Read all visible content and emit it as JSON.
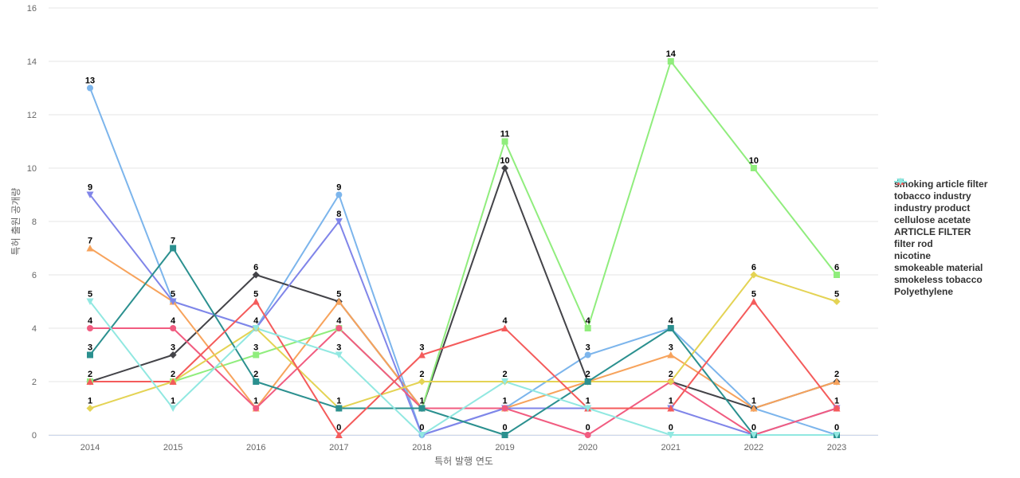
{
  "chart_data": {
    "type": "line",
    "title": "",
    "xlabel": "특허 발행 연도",
    "ylabel": "특허 출원 공개량",
    "ylim": [
      0,
      16
    ],
    "yticks": [
      0,
      2,
      4,
      6,
      8,
      10,
      12,
      14,
      16
    ],
    "categories": [
      "2014",
      "2015",
      "2016",
      "2017",
      "2018",
      "2019",
      "2020",
      "2021",
      "2022",
      "2023"
    ],
    "legend_position": "right",
    "series": [
      {
        "name": "smoking article filter",
        "color": "#7cb5ec",
        "marker": "circle",
        "values": [
          13,
          5,
          4,
          9,
          0,
          1,
          3,
          4,
          1,
          0
        ]
      },
      {
        "name": "tobacco industry",
        "color": "#434348",
        "marker": "diamond",
        "values": [
          2,
          3,
          6,
          5,
          1,
          10,
          2,
          2,
          1,
          2
        ]
      },
      {
        "name": "industry product",
        "color": "#90ed7d",
        "marker": "square",
        "values": [
          2,
          2,
          3,
          4,
          1,
          11,
          4,
          14,
          10,
          6
        ]
      },
      {
        "name": "cellulose acetate",
        "color": "#f7a35c",
        "marker": "triangle",
        "values": [
          7,
          5,
          1,
          5,
          1,
          1,
          2,
          3,
          1,
          2
        ]
      },
      {
        "name": "ARTICLE FILTER",
        "color": "#8085e9",
        "marker": "triangle-down",
        "values": [
          9,
          5,
          4,
          8,
          0,
          1,
          1,
          1,
          0,
          1
        ]
      },
      {
        "name": "filter rod",
        "color": "#f15c80",
        "marker": "circle",
        "values": [
          4,
          4,
          1,
          4,
          1,
          1,
          0,
          2,
          0,
          1
        ]
      },
      {
        "name": "nicotine",
        "color": "#e4d354",
        "marker": "diamond",
        "values": [
          1,
          2,
          4,
          1,
          2,
          2,
          2,
          2,
          6,
          5
        ]
      },
      {
        "name": "smokeable material",
        "color": "#2b908f",
        "marker": "square",
        "values": [
          3,
          7,
          2,
          1,
          1,
          0,
          2,
          4,
          0,
          0
        ]
      },
      {
        "name": "smokeless tobacco",
        "color": "#f45b5b",
        "marker": "triangle",
        "values": [
          2,
          2,
          5,
          0,
          3,
          4,
          1,
          1,
          5,
          1
        ]
      },
      {
        "name": "Polyethylene",
        "color": "#91e8e1",
        "marker": "triangle-down",
        "values": [
          5,
          1,
          4,
          3,
          0,
          2,
          1,
          0,
          0,
          0
        ]
      }
    ],
    "data_labels": [
      {
        "series": 0,
        "index": 0,
        "text": "13"
      },
      {
        "series": 4,
        "index": 0,
        "text": "9"
      },
      {
        "series": 3,
        "index": 0,
        "text": "7"
      },
      {
        "series": 9,
        "index": 0,
        "text": "5"
      },
      {
        "series": 5,
        "index": 0,
        "text": "4"
      },
      {
        "series": 7,
        "index": 0,
        "text": "3"
      },
      {
        "series": 1,
        "index": 0,
        "text": "2"
      },
      {
        "series": 6,
        "index": 0,
        "text": "1"
      },
      {
        "series": 7,
        "index": 1,
        "text": "7"
      },
      {
        "series": 0,
        "index": 1,
        "text": "5"
      },
      {
        "series": 5,
        "index": 1,
        "text": "4"
      },
      {
        "series": 1,
        "index": 1,
        "text": "3"
      },
      {
        "series": 8,
        "index": 1,
        "text": "2"
      },
      {
        "series": 9,
        "index": 1,
        "text": "1"
      },
      {
        "series": 1,
        "index": 2,
        "text": "6"
      },
      {
        "series": 8,
        "index": 2,
        "text": "5"
      },
      {
        "series": 0,
        "index": 2,
        "text": "4"
      },
      {
        "series": 2,
        "index": 2,
        "text": "3"
      },
      {
        "series": 7,
        "index": 2,
        "text": "2"
      },
      {
        "series": 3,
        "index": 2,
        "text": "1"
      },
      {
        "series": 0,
        "index": 3,
        "text": "9"
      },
      {
        "series": 4,
        "index": 3,
        "text": "8"
      },
      {
        "series": 1,
        "index": 3,
        "text": "5"
      },
      {
        "series": 5,
        "index": 3,
        "text": "4"
      },
      {
        "series": 9,
        "index": 3,
        "text": "3"
      },
      {
        "series": 6,
        "index": 3,
        "text": "1"
      },
      {
        "series": 8,
        "index": 3,
        "text": "0"
      },
      {
        "series": 8,
        "index": 4,
        "text": "3"
      },
      {
        "series": 6,
        "index": 4,
        "text": "2"
      },
      {
        "series": 2,
        "index": 4,
        "text": "1"
      },
      {
        "series": 0,
        "index": 4,
        "text": "0"
      },
      {
        "series": 2,
        "index": 5,
        "text": "11"
      },
      {
        "series": 1,
        "index": 5,
        "text": "10"
      },
      {
        "series": 8,
        "index": 5,
        "text": "4"
      },
      {
        "series": 6,
        "index": 5,
        "text": "2"
      },
      {
        "series": 0,
        "index": 5,
        "text": "1"
      },
      {
        "series": 7,
        "index": 5,
        "text": "0"
      },
      {
        "series": 2,
        "index": 6,
        "text": "4"
      },
      {
        "series": 0,
        "index": 6,
        "text": "3"
      },
      {
        "series": 1,
        "index": 6,
        "text": "2"
      },
      {
        "series": 4,
        "index": 6,
        "text": "1"
      },
      {
        "series": 5,
        "index": 6,
        "text": "0"
      },
      {
        "series": 2,
        "index": 7,
        "text": "14"
      },
      {
        "series": 0,
        "index": 7,
        "text": "4"
      },
      {
        "series": 3,
        "index": 7,
        "text": "3"
      },
      {
        "series": 6,
        "index": 7,
        "text": "2"
      },
      {
        "series": 4,
        "index": 7,
        "text": "1"
      },
      {
        "series": 9,
        "index": 7,
        "text": "0"
      },
      {
        "series": 2,
        "index": 8,
        "text": "10"
      },
      {
        "series": 6,
        "index": 8,
        "text": "6"
      },
      {
        "series": 8,
        "index": 8,
        "text": "5"
      },
      {
        "series": 0,
        "index": 8,
        "text": "1"
      },
      {
        "series": 7,
        "index": 8,
        "text": "0"
      },
      {
        "series": 2,
        "index": 9,
        "text": "6"
      },
      {
        "series": 6,
        "index": 9,
        "text": "5"
      },
      {
        "series": 3,
        "index": 9,
        "text": "2"
      },
      {
        "series": 5,
        "index": 9,
        "text": "1"
      },
      {
        "series": 7,
        "index": 9,
        "text": "0"
      }
    ]
  }
}
